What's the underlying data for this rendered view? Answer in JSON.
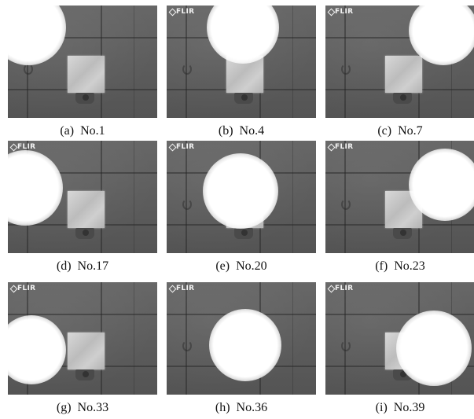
{
  "figure": {
    "panels": [
      {
        "caption": "(a)  No.1",
        "logo_text": "",
        "glow": "top-left"
      },
      {
        "caption": "(b)  No.4",
        "logo_text": "FLIR",
        "glow": "top-center"
      },
      {
        "caption": "(c)  No.7",
        "logo_text": "FLIR",
        "glow": "top-right"
      },
      {
        "caption": "(d)  No.17",
        "logo_text": "FLIR",
        "glow": "middle-left"
      },
      {
        "caption": "(e)  No.20",
        "logo_text": "FLIR",
        "glow": "over-block"
      },
      {
        "caption": "(f)  No.23",
        "logo_text": "FLIR",
        "glow": "middle-right"
      },
      {
        "caption": "(g)  No.33",
        "logo_text": "FLIR",
        "glow": "bottom-left"
      },
      {
        "caption": "(h)  No.36",
        "logo_text": "FLIR",
        "glow": "bottom-center"
      },
      {
        "caption": "(i)  No.39",
        "logo_text": "FLIR",
        "glow": "bottom-right"
      }
    ],
    "colors": {
      "background": "#ffffff",
      "thermal_bg": "#5d5d5d",
      "hot_spot": "#ffffff",
      "caption_text": "#111111"
    },
    "icons": {
      "logo": "flir-logo-icon"
    }
  }
}
